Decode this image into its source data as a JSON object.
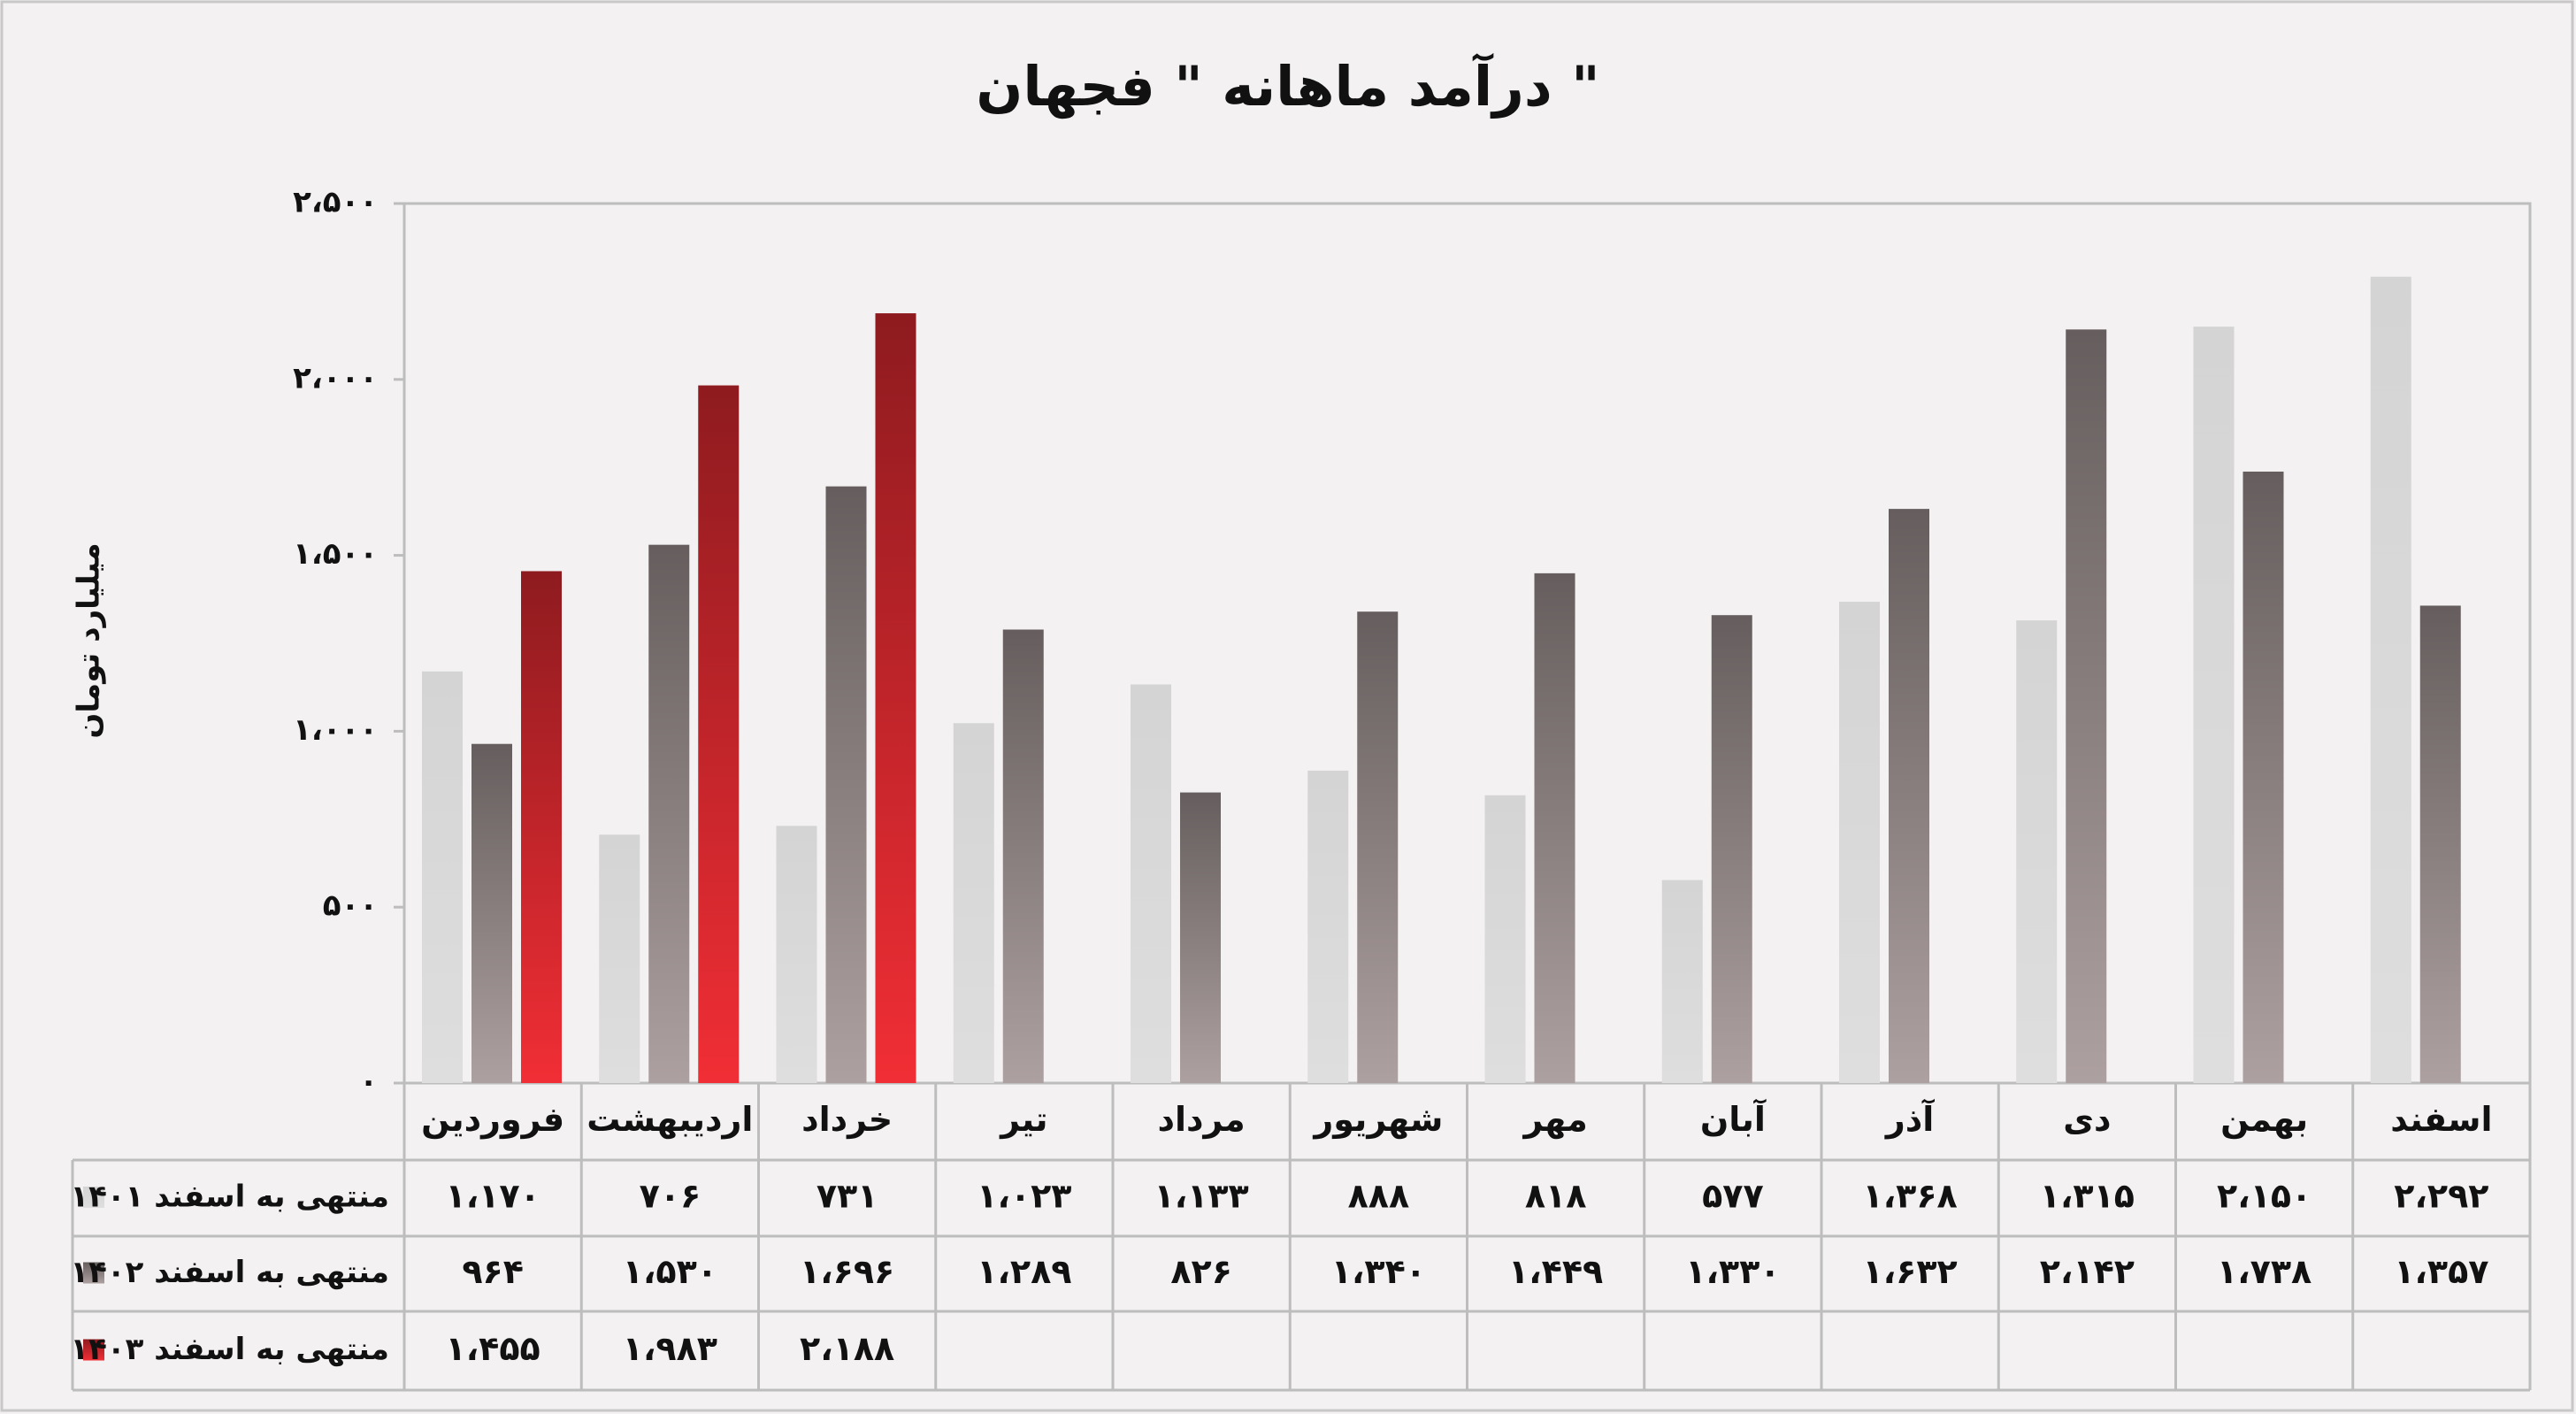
{
  "chart_data": {
    "type": "bar",
    "title": "درآمد ماهانه \" فجهان \"",
    "y_label": "میلیارد تومان",
    "categories": [
      "فروردین",
      "اردیبهشت",
      "خرداد",
      "تیر",
      "مرداد",
      "شهریور",
      "مهر",
      "آبان",
      "آذر",
      "دی",
      "بهمن",
      "اسفند"
    ],
    "series": [
      {
        "name": "منتهی به اسفند ۱۴۰۱",
        "color": "#d4d4d4",
        "values": [
          1170,
          706,
          731,
          1023,
          1133,
          888,
          818,
          577,
          1368,
          1315,
          2150,
          2292
        ],
        "value_labels": [
          "۱،۱۷۰",
          "۷۰۶",
          "۷۳۱",
          "۱،۰۲۳",
          "۱،۱۳۳",
          "۸۸۸",
          "۸۱۸",
          "۵۷۷",
          "۱،۳۶۸",
          "۱،۳۱۵",
          "۲،۱۵۰",
          "۲،۲۹۲"
        ]
      },
      {
        "name": "منتهی به اسفند ۱۴۰۲",
        "color": "#665e5e",
        "values": [
          964,
          1530,
          1696,
          1289,
          826,
          1340,
          1449,
          1330,
          1632,
          2142,
          1738,
          1357
        ],
        "value_labels": [
          "۹۶۴",
          "۱،۵۳۰",
          "۱،۶۹۶",
          "۱،۲۸۹",
          "۸۲۶",
          "۱،۳۴۰",
          "۱،۴۴۹",
          "۱،۳۳۰",
          "۱،۶۳۲",
          "۲،۱۴۲",
          "۱،۷۳۸",
          "۱،۳۵۷"
        ]
      },
      {
        "name": "منتهی به اسفند ۱۴۰۳",
        "color": "#8e1b1f",
        "values": [
          1455,
          1983,
          2188,
          null,
          null,
          null,
          null,
          null,
          null,
          null,
          null,
          null
        ],
        "value_labels": [
          "۱،۴۵۵",
          "۱،۹۸۳",
          "۲،۱۸۸",
          null,
          null,
          null,
          null,
          null,
          null,
          null,
          null,
          null
        ]
      }
    ],
    "ylim": [
      0,
      2500
    ],
    "yticks": [
      {
        "value": 0,
        "label": "۰"
      },
      {
        "value": 500,
        "label": "۵۰۰"
      },
      {
        "value": 1000,
        "label": "۱،۰۰۰"
      },
      {
        "value": 1500,
        "label": "۱،۵۰۰"
      },
      {
        "value": 2000,
        "label": "۲،۰۰۰"
      },
      {
        "value": 2500,
        "label": "۲،۵۰۰"
      }
    ],
    "grid": false
  }
}
